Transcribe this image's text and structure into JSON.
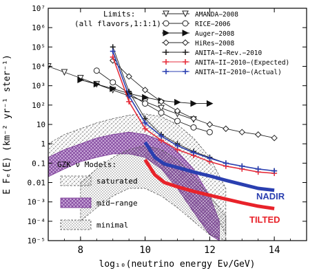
{
  "chart_data": {
    "type": "line",
    "title": "",
    "xlabel": "log₁₀(neutrino energy Eν/GeV)",
    "ylabel": "E Fₑ(E)  (km⁻² yr⁻¹ ster⁻¹)",
    "x_scale": "linear",
    "y_scale": "log",
    "xlim": [
      7,
      15
    ],
    "ylim": [
      1e-05,
      10000000.0
    ],
    "x_ticks": [
      8,
      10,
      12,
      14
    ],
    "x_tick_labels": [
      "8",
      "10",
      "12",
      "14"
    ],
    "y_ticks": [
      10000000.0,
      1000000.0,
      100000.0,
      10000.0,
      1000.0,
      100,
      10,
      1,
      0.1,
      0.01,
      0.001,
      0.0001,
      1e-05
    ],
    "y_tick_labels": [
      "10⁷",
      "10⁶",
      "10⁵",
      "10⁴",
      "10³",
      "10²",
      "10",
      "1",
      "0.1",
      "0.01",
      "10⁻³",
      "10⁻⁴",
      "10⁻⁵"
    ],
    "limits_label": "Limits:",
    "limits_sublabel": "(all flavors,1:1:1)",
    "series": [
      {
        "name": "AMANDA−2008",
        "marker": "triangle-down",
        "color": "#222222",
        "x": [
          7,
          7.5,
          8.0,
          8.5,
          9.0,
          9.5,
          10.0,
          10.5,
          11.0,
          11.5
        ],
        "y": [
          10000,
          5000,
          2500,
          1200,
          600,
          300,
          150,
          70,
          35,
          18
        ]
      },
      {
        "name": "RICE−2006",
        "marker": "circle-open",
        "color": "#222222",
        "x": [
          8.5,
          9.0,
          9.5,
          10.0,
          10.5,
          11.0,
          11.5,
          12.0
        ],
        "y": [
          6000,
          1500,
          400,
          120,
          40,
          15,
          7,
          4
        ]
      },
      {
        "name": "Auger−2008",
        "marker": "triangle-right",
        "color": "#111111",
        "x": [
          8.0,
          8.5,
          9.0,
          9.5,
          10.0,
          10.5,
          11.0,
          11.5,
          12.0
        ],
        "y": [
          2000,
          1200,
          700,
          400,
          250,
          170,
          140,
          120,
          120
        ]
      },
      {
        "name": "HiRes−2008",
        "marker": "diamond-open",
        "color": "#222222",
        "x": [
          9.0,
          9.5,
          10.0,
          10.5,
          11.0,
          11.5,
          12.0,
          12.5,
          13.0,
          13.5,
          14.0
        ],
        "y": [
          20000,
          3000,
          600,
          150,
          50,
          20,
          10,
          6,
          4,
          3,
          2
        ]
      },
      {
        "name": "ANITA−I−Rev.−2010",
        "marker": "plus",
        "color": "#222222",
        "x": [
          9.0,
          9.5,
          10.0,
          10.5,
          11.0,
          11.5,
          12.0,
          12.5,
          13.0,
          13.5,
          14.0
        ],
        "y": [
          100000,
          500,
          20,
          3,
          1,
          0.4,
          0.2,
          0.1,
          0.07,
          0.05,
          0.04
        ]
      },
      {
        "name": "ANITA−II−2010−(Expected)",
        "marker": "plus",
        "color": "#e62e3c",
        "x": [
          9.0,
          9.5,
          10.0,
          10.5,
          11.0,
          11.5,
          12.0,
          12.5,
          13.0,
          13.5,
          14.0
        ],
        "y": [
          30000,
          150,
          6,
          1.5,
          0.5,
          0.25,
          0.12,
          0.07,
          0.05,
          0.035,
          0.03
        ]
      },
      {
        "name": "ANITA−II−2010−(Actual)",
        "marker": "plus",
        "color": "#2a3fb0",
        "x": [
          9.0,
          9.5,
          10.0,
          10.5,
          11.0,
          11.5,
          12.0,
          12.5,
          13.0,
          13.5,
          14.0
        ],
        "y": [
          60000,
          300,
          12,
          2.5,
          0.8,
          0.35,
          0.18,
          0.1,
          0.07,
          0.05,
          0.04
        ]
      }
    ],
    "curves": [
      {
        "name": "NADIR",
        "color": "#2a3fb0",
        "x": [
          10.0,
          10.3,
          10.6,
          11.0,
          11.5,
          12.0,
          12.5,
          13.0,
          13.5,
          14.0
        ],
        "y": [
          1.2,
          0.2,
          0.09,
          0.06,
          0.035,
          0.022,
          0.013,
          0.008,
          0.005,
          0.004
        ]
      },
      {
        "name": "TILTED",
        "color": "#e8222a",
        "x": [
          10.0,
          10.3,
          10.6,
          11.0,
          11.5,
          12.0,
          12.5,
          13.0,
          13.5,
          14.0
        ],
        "y": [
          0.15,
          0.025,
          0.01,
          0.006,
          0.0035,
          0.0022,
          0.0014,
          0.0009,
          0.0006,
          0.00045
        ]
      }
    ],
    "models_title": "GZK ν Models:",
    "models": [
      {
        "name": "saturated",
        "pattern": "dashed-hatch",
        "x": [
          7.0,
          7.5,
          8.0,
          8.5,
          9.0,
          9.5,
          10.0,
          10.5,
          11.0,
          11.5,
          12.0,
          12.5
        ],
        "y_low": [
          0.04,
          0.1,
          0.25,
          0.5,
          1.0,
          1.5,
          1.5,
          0.8,
          0.2,
          0.03,
          0.001,
          2e-05
        ],
        "y_high": [
          1,
          3,
          6,
          12,
          20,
          30,
          35,
          25,
          10,
          2,
          0.2,
          0.005
        ]
      },
      {
        "name": "mid−range",
        "pattern": "purple-cross",
        "x": [
          7.0,
          7.5,
          8.0,
          8.5,
          9.0,
          9.5,
          10.0,
          10.5,
          11.0,
          11.5,
          12.0,
          12.3
        ],
        "y_low": [
          0.02,
          0.05,
          0.12,
          0.2,
          0.3,
          0.3,
          0.2,
          0.05,
          0.005,
          0.0003,
          2e-05,
          1e-05
        ],
        "y_high": [
          0.2,
          0.5,
          1,
          2,
          3,
          4,
          3,
          1.5,
          0.4,
          0.05,
          0.002,
          0.0001
        ]
      },
      {
        "name": "minimal",
        "pattern": "dotted-hatch",
        "x": [
          8.0,
          8.5,
          9.0,
          9.5,
          10.0,
          10.5,
          11.0,
          11.5,
          12.0,
          12.5
        ],
        "y_low": [
          0.0001,
          0.0005,
          0.002,
          0.005,
          0.005,
          0.002,
          0.0005,
          0.0001,
          2e-05,
          1e-05
        ],
        "y_high": [
          0.01,
          0.05,
          0.2,
          0.5,
          0.8,
          0.5,
          0.15,
          0.02,
          0.002,
          0.0002
        ]
      }
    ],
    "grid": false,
    "legend_position": "top-right"
  }
}
